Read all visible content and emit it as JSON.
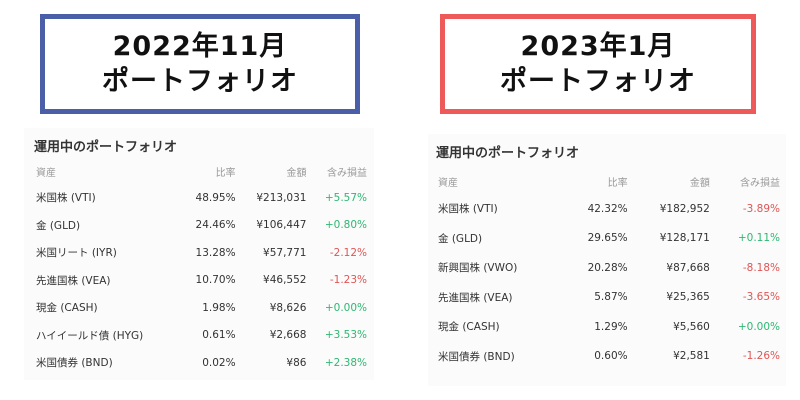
{
  "left": {
    "title_line1": "2022年11月",
    "title_line2": "ポートフォリオ",
    "card_title": "運用中のポートフォリオ",
    "headers": {
      "asset": "資産",
      "ratio": "比率",
      "amount": "金額",
      "pl": "含み損益"
    },
    "rows": [
      {
        "name": "米国株 (VTI)",
        "ratio": "48.95%",
        "amount": "¥213,031",
        "pl": "+5.57%",
        "sign": "pos"
      },
      {
        "name": "金 (GLD)",
        "ratio": "24.46%",
        "amount": "¥106,447",
        "pl": "+0.80%",
        "sign": "pos"
      },
      {
        "name": "米国リート (IYR)",
        "ratio": "13.28%",
        "amount": "¥57,771",
        "pl": "-2.12%",
        "sign": "neg"
      },
      {
        "name": "先進国株 (VEA)",
        "ratio": "10.70%",
        "amount": "¥46,552",
        "pl": "-1.23%",
        "sign": "neg"
      },
      {
        "name": "現金 (CASH)",
        "ratio": "1.98%",
        "amount": "¥8,626",
        "pl": "+0.00%",
        "sign": "pos"
      },
      {
        "name": "ハイイールド債 (HYG)",
        "ratio": "0.61%",
        "amount": "¥2,668",
        "pl": "+3.53%",
        "sign": "pos"
      },
      {
        "name": "米国債券 (BND)",
        "ratio": "0.02%",
        "amount": "¥86",
        "pl": "+2.38%",
        "sign": "pos"
      }
    ]
  },
  "right": {
    "title_line1": "2023年1月",
    "title_line2": "ポートフォリオ",
    "card_title": "運用中のポートフォリオ",
    "headers": {
      "asset": "資産",
      "ratio": "比率",
      "amount": "金額",
      "pl": "含み損益"
    },
    "rows": [
      {
        "name": "米国株 (VTI)",
        "ratio": "42.32%",
        "amount": "¥182,952",
        "pl": "-3.89%",
        "sign": "neg"
      },
      {
        "name": "金 (GLD)",
        "ratio": "29.65%",
        "amount": "¥128,171",
        "pl": "+0.11%",
        "sign": "pos"
      },
      {
        "name": "新興国株 (VWO)",
        "ratio": "20.28%",
        "amount": "¥87,668",
        "pl": "-8.18%",
        "sign": "neg"
      },
      {
        "name": "先進国株 (VEA)",
        "ratio": "5.87%",
        "amount": "¥25,365",
        "pl": "-3.65%",
        "sign": "neg"
      },
      {
        "name": "現金 (CASH)",
        "ratio": "1.29%",
        "amount": "¥5,560",
        "pl": "+0.00%",
        "sign": "pos"
      },
      {
        "name": "米国債券 (BND)",
        "ratio": "0.60%",
        "amount": "¥2,581",
        "pl": "-1.26%",
        "sign": "neg"
      }
    ]
  },
  "colors": {
    "positive": "#2eb872",
    "negative": "#e05555",
    "left_border": "#4a5fa8",
    "right_border": "#ee5a5a"
  }
}
